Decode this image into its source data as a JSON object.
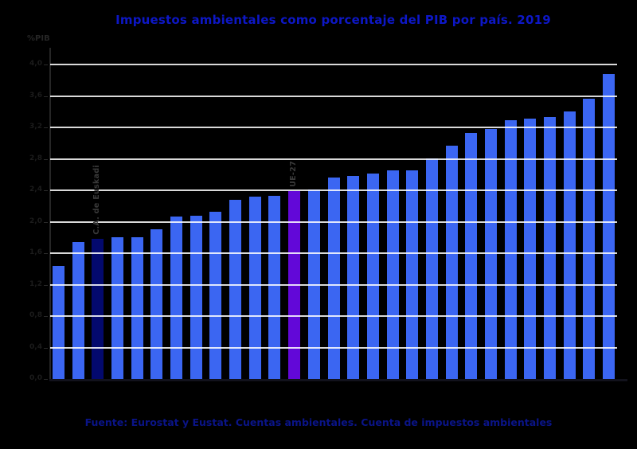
{
  "title": {
    "text": "Impuestos ambientales como porcentaje del PIB por país. 2019",
    "color": "#0D17C6"
  },
  "footer": {
    "text": "Fuente: Eurostat y Eustat. Cuentas ambientales. Cuenta de impuestos ambientales",
    "color": "#0A1488"
  },
  "chart_data": {
    "type": "bar",
    "title": "Impuestos ambientales como porcentaje del PIB por país. 2019",
    "ylabel": "%PIB",
    "xlabel": "",
    "ylim": [
      0,
      4.0
    ],
    "ytick_step": 0.4,
    "ytick_labels": [
      "0,0",
      "0,4",
      "0,8",
      "1,2",
      "1,6",
      "2,0",
      "2,4",
      "2,8",
      "3,2",
      "3,6",
      "4,0"
    ],
    "grid": true,
    "legend": false,
    "values": [
      1.44,
      1.74,
      1.78,
      1.8,
      1.8,
      1.9,
      2.07,
      2.08,
      2.13,
      2.28,
      2.32,
      2.33,
      2.39,
      2.41,
      2.56,
      2.58,
      2.61,
      2.65,
      2.65,
      2.81,
      2.97,
      3.13,
      3.18,
      3.29,
      3.31,
      3.33,
      3.4,
      3.56,
      3.88
    ],
    "bar_color": "#3B66F2",
    "highlighted_bars": [
      {
        "index": 2,
        "label": "C.A. de Euskadi",
        "color": "#03096E"
      },
      {
        "index": 12,
        "label": "UE-27",
        "color": "#6208D8"
      }
    ]
  }
}
